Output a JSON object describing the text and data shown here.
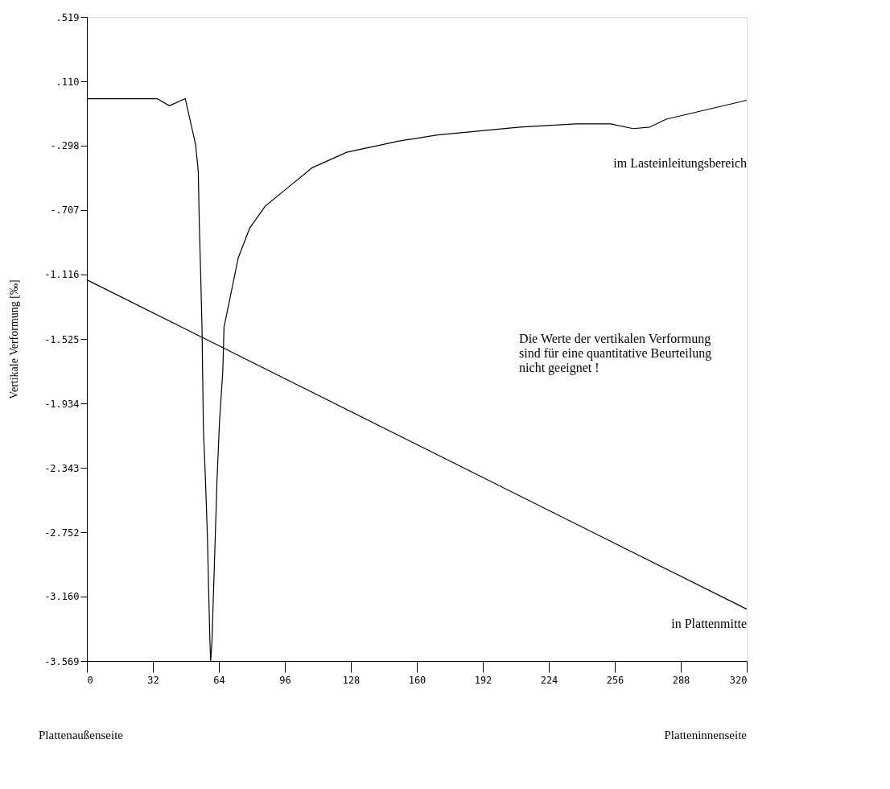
{
  "chart_data": {
    "type": "line",
    "ylabel": "Vertikale Verformung [‰]",
    "xlim": [
      0,
      320
    ],
    "ylim": [
      -3.569,
      0.519
    ],
    "xticks": [
      0,
      32,
      64,
      96,
      128,
      160,
      192,
      224,
      256,
      288,
      320
    ],
    "yticks": [
      {
        "value": 0.519,
        "label": ".519"
      },
      {
        "value": 0.11,
        "label": ".110"
      },
      {
        "value": -0.298,
        "label": "-.298"
      },
      {
        "value": -0.707,
        "label": "-.707"
      },
      {
        "value": -1.116,
        "label": "-1.116"
      },
      {
        "value": -1.525,
        "label": "-1.525"
      },
      {
        "value": -1.934,
        "label": "-1.934"
      },
      {
        "value": -2.343,
        "label": "-2.343"
      },
      {
        "value": -2.752,
        "label": "-2.752"
      },
      {
        "value": -3.16,
        "label": "-3.160"
      },
      {
        "value": -3.569,
        "label": "-3.569"
      }
    ],
    "grid": false,
    "legend": false,
    "marker": "none",
    "line_style": "solid",
    "series": [
      {
        "name": "im Lasteinleitungsbereich",
        "color": "#000000",
        "x": [
          0,
          34,
          40,
          47.7,
          52.7,
          54,
          54.5,
          55.2,
          55.8,
          56.5,
          57.5,
          58.4,
          59,
          59.6,
          60,
          60.6,
          61.1,
          62.1,
          63.1,
          64.3,
          65.9,
          66.5,
          73.4,
          79,
          86.6,
          97.9,
          109,
          126,
          151,
          170,
          210,
          237,
          254,
          265,
          273,
          281,
          320
        ],
        "values": [
          0,
          0,
          -0.045,
          0,
          -0.29,
          -0.46,
          -0.79,
          -1.13,
          -1.44,
          -2.1,
          -2.42,
          -2.76,
          -3.09,
          -3.42,
          -3.569,
          -3.46,
          -3.26,
          -2.84,
          -2.42,
          -2.05,
          -1.73,
          -1.45,
          -1.01,
          -0.82,
          -0.68,
          -0.56,
          -0.44,
          -0.34,
          -0.27,
          -0.23,
          -0.18,
          -0.16,
          -0.16,
          -0.19,
          -0.18,
          -0.13,
          -0.01
        ]
      },
      {
        "name": "in Plattenmitte",
        "color": "#000000",
        "x": [
          0,
          320
        ],
        "values": [
          -1.15,
          -3.24
        ]
      }
    ],
    "annotations": [
      "Die Werte der vertikalen Verformung\nsind für eine quantitative Beurteilung\nnicht geeignet !",
      "Plattenaußenseite",
      "Platteninnenseite"
    ]
  }
}
